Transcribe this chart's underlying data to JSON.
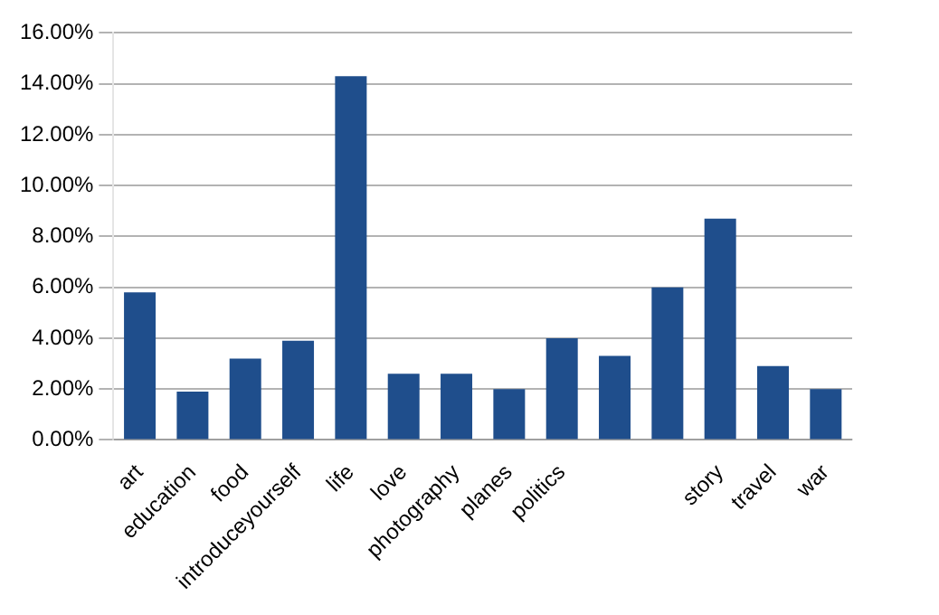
{
  "chart_data": {
    "type": "bar",
    "categories": [
      "art",
      "education",
      "food",
      "introduceyourself",
      "life",
      "love",
      "photography",
      "planes",
      "politics",
      null,
      null,
      "story",
      "travel",
      "war"
    ],
    "values": [
      5.8,
      1.9,
      3.2,
      3.9,
      14.3,
      2.6,
      2.6,
      2.0,
      4.0,
      3.3,
      6.0,
      8.7,
      2.9,
      2.0
    ],
    "color": "#1f4e8c",
    "ylim": [
      0,
      16
    ],
    "yticks": [
      {
        "value": 0,
        "label": "0.00%"
      },
      {
        "value": 2,
        "label": "2.00%"
      },
      {
        "value": 4,
        "label": "4.00%"
      },
      {
        "value": 6,
        "label": "6.00%"
      },
      {
        "value": 8,
        "label": "8.00%"
      },
      {
        "value": 10,
        "label": "10.00%"
      },
      {
        "value": 12,
        "label": "12.00%"
      },
      {
        "value": 14,
        "label": "14.00%"
      },
      {
        "value": 16,
        "label": "16.00%"
      }
    ],
    "grid": "y",
    "legend": false
  }
}
